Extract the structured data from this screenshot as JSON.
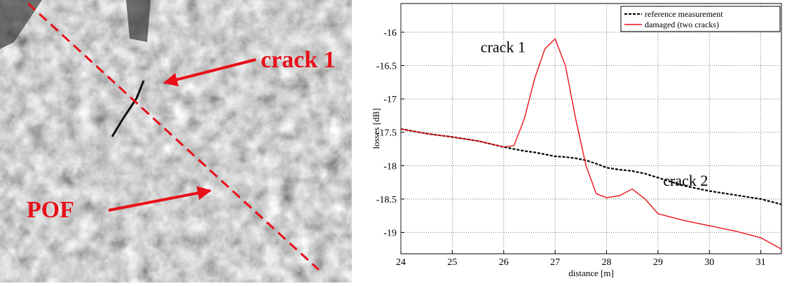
{
  "photo": {
    "labels": [
      "crack 1",
      "POF"
    ]
  },
  "chart_data": {
    "type": "line",
    "xlabel": "distance [m]",
    "ylabel": "losses [dB]",
    "annotations": [
      {
        "text": "crack 1",
        "x": 25.55,
        "y": -16.3
      },
      {
        "text": "crack 2",
        "x": 29.1,
        "y": -18.3
      }
    ],
    "x": [
      24,
      24.5,
      25,
      25.5,
      26,
      26.2,
      26.4,
      26.6,
      26.8,
      27,
      27.2,
      27.4,
      27.6,
      27.8,
      28,
      28.25,
      28.5,
      28.75,
      29,
      29.5,
      30,
      30.5,
      31,
      31.4
    ],
    "series": [
      {
        "name": "reference measurement",
        "color": "#000000",
        "dashed": true,
        "values": [
          -17.45,
          -17.52,
          -17.57,
          -17.63,
          -17.72,
          -17.75,
          -17.78,
          -17.8,
          -17.83,
          -17.86,
          -17.87,
          -17.89,
          -17.92,
          -17.97,
          -18.03,
          -18.06,
          -18.08,
          -18.12,
          -18.18,
          -18.3,
          -18.38,
          -18.44,
          -18.5,
          -18.58
        ]
      },
      {
        "name": "damaged (two cracks)",
        "color": "#e8101a",
        "dashed": false,
        "values": [
          -17.45,
          -17.52,
          -17.57,
          -17.63,
          -17.72,
          -17.7,
          -17.3,
          -16.7,
          -16.25,
          -16.1,
          -16.5,
          -17.3,
          -18.0,
          -18.42,
          -18.48,
          -18.45,
          -18.35,
          -18.5,
          -18.72,
          -18.82,
          -18.9,
          -18.98,
          -19.08,
          -19.25
        ]
      }
    ],
    "xlim": [
      24,
      31.4
    ],
    "ylim": [
      -19.32,
      -15.57
    ],
    "xticks": [
      24,
      25,
      26,
      27,
      28,
      29,
      30,
      31
    ],
    "yticks": [
      -16,
      -16.5,
      -17,
      -17.5,
      -18,
      -18.5,
      -19
    ],
    "grid": true,
    "legend": "top-right"
  }
}
